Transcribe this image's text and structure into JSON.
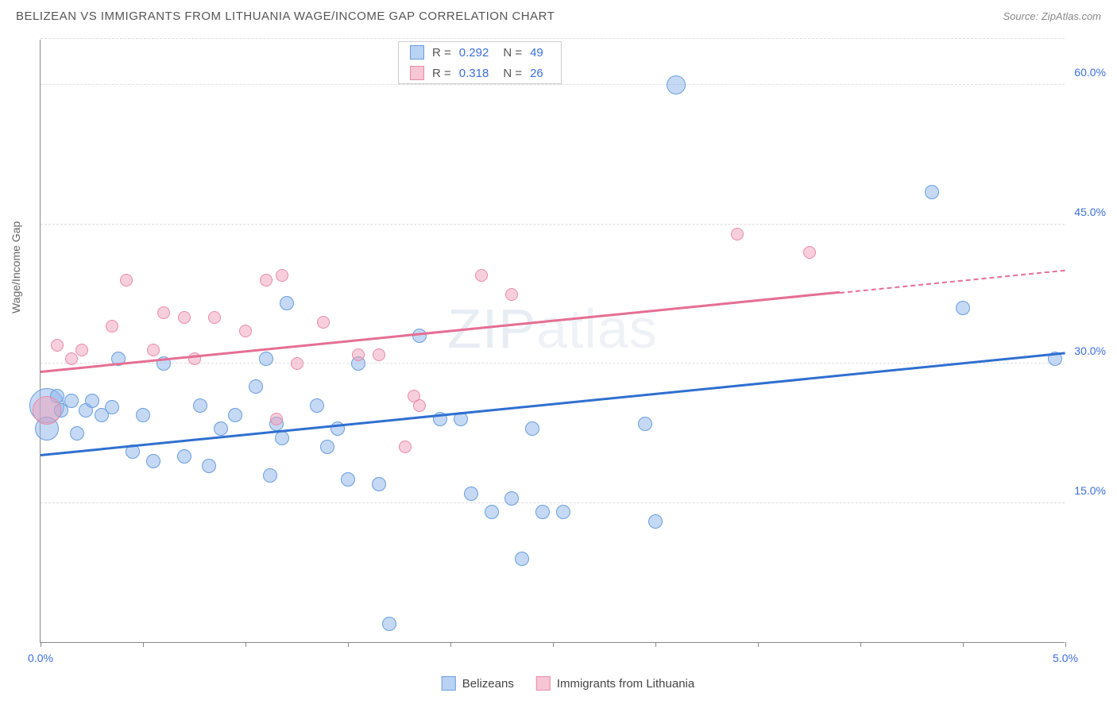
{
  "title": "BELIZEAN VS IMMIGRANTS FROM LITHUANIA WAGE/INCOME GAP CORRELATION CHART",
  "source": "Source: ZipAtlas.com",
  "watermark": "ZIPatlas",
  "y_axis_label": "Wage/Income Gap",
  "chart": {
    "type": "scatter",
    "xlim": [
      0.0,
      5.0
    ],
    "ylim": [
      0.0,
      65.0
    ],
    "x_ticks": [
      0.0,
      0.5,
      1.0,
      1.5,
      2.0,
      2.5,
      3.0,
      3.5,
      4.0,
      4.5,
      5.0
    ],
    "x_tick_labels": {
      "0": "0.0%",
      "10": "5.0%"
    },
    "y_gridlines": [
      15.0,
      30.0,
      45.0,
      60.0,
      65.0
    ],
    "y_tick_labels": {
      "15": "15.0%",
      "30": "30.0%",
      "45": "45.0%",
      "60": "60.0%"
    },
    "grid_color": "#dddddd",
    "background_color": "#ffffff",
    "axis_color": "#888888",
    "tick_label_color": "#3b6fd8"
  },
  "series": [
    {
      "name": "Belizeans",
      "color_fill": "rgba(140,180,235,0.5)",
      "color_stroke": "#6a9edb",
      "trend_color": "#2f6fd0",
      "default_r": 9,
      "points": [
        [
          0.03,
          25.5,
          22
        ],
        [
          0.03,
          23.0,
          15
        ],
        [
          0.08,
          26.5
        ],
        [
          0.1,
          25.0
        ],
        [
          0.15,
          26.0
        ],
        [
          0.18,
          22.5
        ],
        [
          0.22,
          25.0
        ],
        [
          0.25,
          26.0
        ],
        [
          0.3,
          24.5
        ],
        [
          0.35,
          25.3
        ],
        [
          0.38,
          30.5
        ],
        [
          0.45,
          20.5
        ],
        [
          0.5,
          24.5
        ],
        [
          0.55,
          19.5
        ],
        [
          0.6,
          30.0
        ],
        [
          0.7,
          20.0
        ],
        [
          0.78,
          25.5
        ],
        [
          0.82,
          19.0
        ],
        [
          0.88,
          23.0
        ],
        [
          0.95,
          24.5
        ],
        [
          1.05,
          27.5
        ],
        [
          1.1,
          30.5
        ],
        [
          1.12,
          18.0
        ],
        [
          1.15,
          23.5
        ],
        [
          1.18,
          22.0
        ],
        [
          1.2,
          36.5
        ],
        [
          1.35,
          25.5
        ],
        [
          1.4,
          21.0
        ],
        [
          1.45,
          23.0
        ],
        [
          1.5,
          17.5
        ],
        [
          1.55,
          30.0
        ],
        [
          1.65,
          17.0
        ],
        [
          1.7,
          2.0
        ],
        [
          1.85,
          33.0
        ],
        [
          1.95,
          24.0
        ],
        [
          2.05,
          24.0
        ],
        [
          2.1,
          16.0
        ],
        [
          2.2,
          14.0
        ],
        [
          2.3,
          15.5
        ],
        [
          2.35,
          9.0
        ],
        [
          2.4,
          23.0
        ],
        [
          2.45,
          14.0
        ],
        [
          2.55,
          14.0
        ],
        [
          2.95,
          23.5
        ],
        [
          3.0,
          13.0
        ],
        [
          3.1,
          60.0,
          12
        ],
        [
          4.35,
          48.5
        ],
        [
          4.5,
          36.0
        ],
        [
          4.95,
          30.5
        ]
      ],
      "trend": {
        "x1": 0.0,
        "y1": 20.0,
        "x2": 5.0,
        "y2": 31.0,
        "dash_from_x": null
      }
    },
    {
      "name": "Immigrants from Lithuania",
      "color_fill": "rgba(240,160,185,0.5)",
      "color_stroke": "#e88aa8",
      "trend_color": "#e56e93",
      "default_r": 8,
      "points": [
        [
          0.03,
          25.0,
          18
        ],
        [
          0.08,
          32.0
        ],
        [
          0.15,
          30.5
        ],
        [
          0.2,
          31.5
        ],
        [
          0.35,
          34.0
        ],
        [
          0.42,
          39.0
        ],
        [
          0.55,
          31.5
        ],
        [
          0.6,
          35.5
        ],
        [
          0.7,
          35.0
        ],
        [
          0.75,
          30.5
        ],
        [
          0.85,
          35.0
        ],
        [
          1.0,
          33.5
        ],
        [
          1.1,
          39.0
        ],
        [
          1.15,
          24.0
        ],
        [
          1.18,
          39.5
        ],
        [
          1.25,
          30.0
        ],
        [
          1.38,
          34.5
        ],
        [
          1.55,
          31.0
        ],
        [
          1.65,
          31.0
        ],
        [
          1.78,
          21.0
        ],
        [
          1.82,
          26.5
        ],
        [
          1.85,
          25.5
        ],
        [
          2.15,
          39.5
        ],
        [
          2.3,
          37.5
        ],
        [
          3.4,
          44.0
        ],
        [
          3.75,
          42.0
        ]
      ],
      "trend": {
        "x1": 0.0,
        "y1": 29.0,
        "x2": 5.0,
        "y2": 40.0,
        "dash_from_x": 3.9
      }
    }
  ],
  "stats": [
    {
      "swatch": "blue",
      "r_label": "R =",
      "r_value": "0.292",
      "n_label": "N =",
      "n_value": "49"
    },
    {
      "swatch": "pink",
      "r_label": "R =",
      "r_value": "0.318",
      "n_label": "N =",
      "n_value": "26"
    }
  ],
  "legend": [
    {
      "swatch": "blue",
      "label": "Belizeans"
    },
    {
      "swatch": "pink",
      "label": "Immigrants from Lithuania"
    }
  ]
}
